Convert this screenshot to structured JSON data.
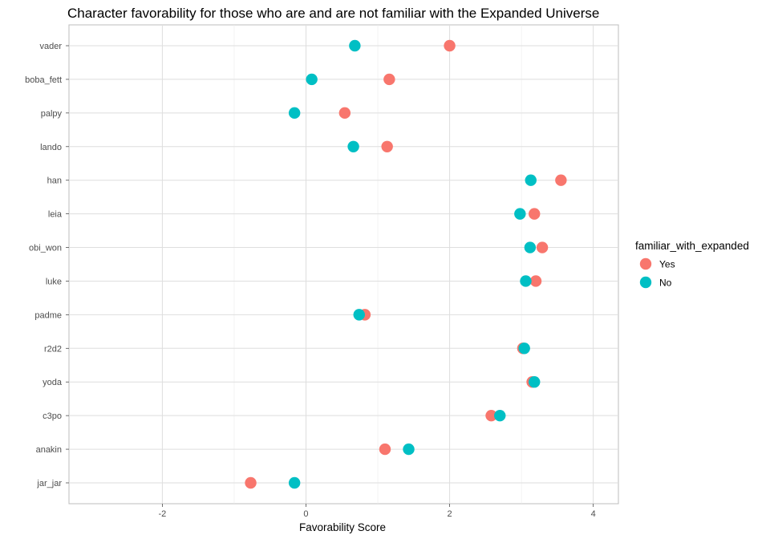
{
  "chart_data": {
    "type": "scatter",
    "title": "Character favorability for those who are and are not familiar with the Expanded Universe",
    "xlabel": "Favorability Score",
    "ylabel": "",
    "xlim": [
      -3.3,
      4.35
    ],
    "xticks": [
      -2,
      0,
      2,
      4
    ],
    "grid": true,
    "legend_title": "familiar_with_expanded",
    "legend_position": "right",
    "categories": [
      "vader",
      "boba_fett",
      "palpy",
      "lando",
      "han",
      "leia",
      "obi_won",
      "luke",
      "padme",
      "r2d2",
      "yoda",
      "c3po",
      "anakin",
      "jar_jar"
    ],
    "series": [
      {
        "name": "Yes",
        "color": "#F8766D",
        "values": [
          2.0,
          1.16,
          0.54,
          1.13,
          3.55,
          3.18,
          3.29,
          3.2,
          0.82,
          3.02,
          3.15,
          2.58,
          1.1,
          -0.77
        ]
      },
      {
        "name": "No",
        "color": "#00BFC4",
        "values": [
          0.68,
          0.08,
          -0.16,
          0.66,
          3.13,
          2.98,
          3.12,
          3.06,
          0.74,
          3.04,
          3.18,
          2.7,
          1.43,
          -0.16
        ]
      }
    ]
  }
}
